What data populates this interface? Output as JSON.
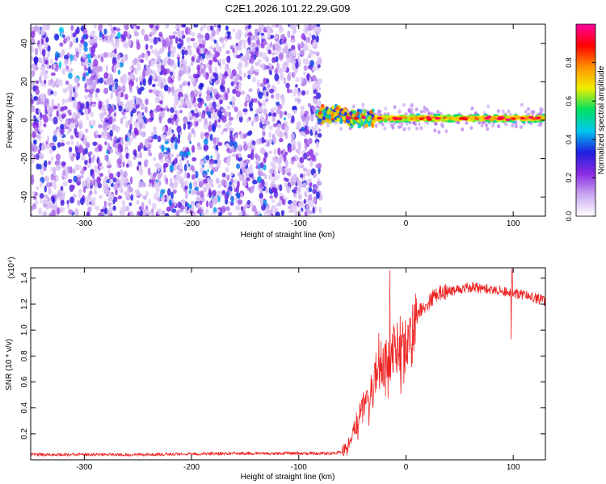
{
  "title": "C2E1.2026.101.22.29.G09",
  "colors": {
    "line": "#ee2222",
    "axis": "#000000",
    "colormap": [
      "#ffffff",
      "#c9a8f0",
      "#8a2be2",
      "#1f1fe0",
      "#00c8f0",
      "#00e060",
      "#f0f000",
      "#ff9000",
      "#ff0000",
      "#ff00a0"
    ]
  },
  "chart_data": [
    {
      "type": "heatmap",
      "title": "C2E1.2026.101.22.29.G09",
      "xlabel": "Height of straight line (km)",
      "ylabel": "Frequency (Hz)",
      "xlim": [
        -350,
        130
      ],
      "ylim": [
        -50,
        50
      ],
      "xticks": [
        -300,
        -200,
        -100,
        0,
        100
      ],
      "xtick_labels": [
        "-300",
        "-200",
        "-100",
        "0",
        "100"
      ],
      "yticks": [
        -40,
        -20,
        0,
        20,
        40
      ],
      "ytick_labels": [
        "-40",
        "-20",
        "0",
        "20",
        "40"
      ],
      "colorbar": {
        "label": "Normalized spectral amplitude",
        "range": [
          0,
          1
        ],
        "ticks": [
          0.0,
          0.2,
          0.4,
          0.6,
          0.8
        ],
        "tick_labels": [
          "0.0",
          "0.2",
          "0.4",
          "0.6",
          "0.8"
        ]
      },
      "regions": [
        {
          "name": "diffuse scatter",
          "x_range": [
            -350,
            -80
          ],
          "freq_range": [
            -50,
            50
          ],
          "amplitude_range": [
            0.0,
            0.3
          ]
        },
        {
          "name": "tone transition",
          "x_range": [
            -82,
            -30
          ],
          "center_freq_hz": 3,
          "amplitude_range": [
            0.3,
            0.85
          ]
        },
        {
          "name": "steady tone",
          "x_range": [
            -30,
            130
          ],
          "center_freq_hz": 1,
          "amplitude_range": [
            0.5,
            0.9
          ]
        }
      ]
    },
    {
      "type": "line",
      "xlabel": "Height of straight line (km)",
      "ylabel": "SNR (10 * v/v)",
      "y_scale_label": "(x10⁴)",
      "xlim": [
        -350,
        130
      ],
      "ylim": [
        0,
        1.48
      ],
      "xticks": [
        -300,
        -200,
        -100,
        0,
        100
      ],
      "xtick_labels": [
        "-300",
        "-200",
        "-100",
        "0",
        "100"
      ],
      "yticks": [
        0.2,
        0.4,
        0.6,
        0.8,
        1.0,
        1.2,
        1.4
      ],
      "ytick_labels": [
        "0.2",
        "0.4",
        "0.6",
        "0.8",
        "1.0",
        "1.2",
        "1.4"
      ],
      "series": [
        {
          "name": "SNR",
          "x": [
            -350,
            -300,
            -250,
            -200,
            -150,
            -100,
            -70,
            -60,
            -55,
            -50,
            -45,
            -40,
            -35,
            -30,
            -25,
            -20,
            -15,
            -10,
            -5,
            0,
            5,
            10,
            15,
            20,
            25,
            30,
            40,
            50,
            60,
            70,
            80,
            90,
            100,
            110,
            120,
            130
          ],
          "y": [
            0.04,
            0.04,
            0.04,
            0.045,
            0.05,
            0.05,
            0.05,
            0.06,
            0.1,
            0.2,
            0.3,
            0.4,
            0.5,
            0.6,
            0.8,
            0.75,
            0.8,
            0.85,
            0.9,
            0.9,
            0.95,
            1.1,
            1.18,
            1.2,
            1.25,
            1.28,
            1.3,
            1.32,
            1.33,
            1.32,
            1.31,
            1.3,
            1.28,
            1.27,
            1.25,
            1.22
          ]
        }
      ],
      "annotations": [
        {
          "x": 98,
          "y": 0.93,
          "note": "downward spike"
        },
        {
          "x": 99,
          "y": 1.47,
          "note": "upward spike"
        },
        {
          "x": -15,
          "y": 1.46,
          "note": "upward spike"
        }
      ]
    }
  ]
}
